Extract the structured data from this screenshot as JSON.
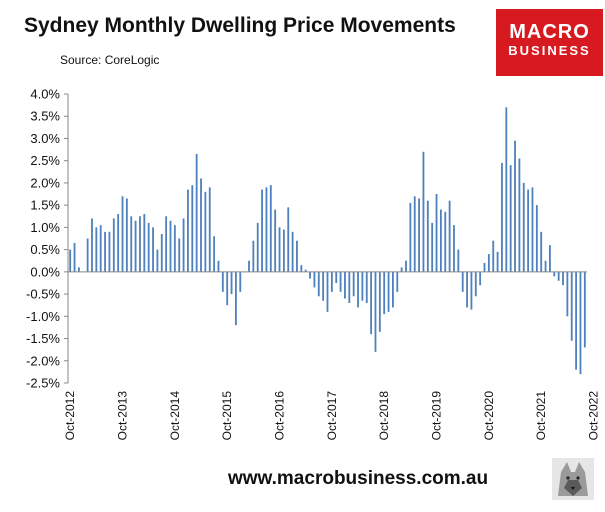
{
  "header": {
    "title": "Sydney Monthly Dwelling Price Movements",
    "source": "Source: CoreLogic",
    "logo_line1": "MACRO",
    "logo_line2": "BUSINESS"
  },
  "footer": {
    "url": "www.macrobusiness.com.au"
  },
  "colors": {
    "bar": "#4f81bd",
    "logo_bg": "#d71920"
  },
  "chart_data": {
    "type": "bar",
    "xlabel": "",
    "ylabel": "",
    "ylim": [
      -2.5,
      4.0
    ],
    "ytick_step": 0.5,
    "yticks": [
      "4.0%",
      "3.5%",
      "3.0%",
      "2.5%",
      "2.0%",
      "1.5%",
      "1.0%",
      "0.5%",
      "0.0%",
      "-0.5%",
      "-1.0%",
      "-1.5%",
      "-2.0%",
      "-2.5%"
    ],
    "xtick_labels": [
      "Oct-2012",
      "Oct-2013",
      "Oct-2014",
      "Oct-2015",
      "Oct-2016",
      "Oct-2017",
      "Oct-2018",
      "Oct-2019",
      "Oct-2020",
      "Oct-2021",
      "Oct-2022"
    ],
    "start_month": "Oct-2012",
    "grid": false,
    "legend": "none",
    "values": [
      0.5,
      0.65,
      0.1,
      0.0,
      0.75,
      1.2,
      1.0,
      1.05,
      0.9,
      0.9,
      1.2,
      1.3,
      1.7,
      1.65,
      1.25,
      1.15,
      1.25,
      1.3,
      1.1,
      1.0,
      0.5,
      0.85,
      1.25,
      1.15,
      1.05,
      0.75,
      1.2,
      1.85,
      1.95,
      2.65,
      2.1,
      1.8,
      1.9,
      0.8,
      0.25,
      -0.45,
      -0.75,
      -0.5,
      -1.2,
      -0.45,
      0.0,
      0.25,
      0.7,
      1.1,
      1.85,
      1.9,
      1.95,
      1.4,
      1.0,
      0.95,
      1.45,
      0.9,
      0.7,
      0.15,
      0.05,
      -0.15,
      -0.35,
      -0.55,
      -0.65,
      -0.9,
      -0.45,
      -0.25,
      -0.45,
      -0.6,
      -0.7,
      -0.55,
      -0.8,
      -0.65,
      -0.7,
      -1.4,
      -1.8,
      -1.35,
      -0.95,
      -0.9,
      -0.8,
      -0.45,
      0.1,
      0.25,
      1.55,
      1.7,
      1.65,
      2.7,
      1.6,
      1.1,
      1.75,
      1.4,
      1.35,
      1.6,
      1.05,
      0.5,
      -0.45,
      -0.8,
      -0.85,
      -0.55,
      -0.3,
      0.2,
      0.4,
      0.7,
      0.45,
      2.45,
      3.7,
      2.4,
      2.95,
      2.55,
      2.0,
      1.85,
      1.9,
      1.5,
      0.9,
      0.25,
      0.6,
      -0.1,
      -0.2,
      -0.3,
      -1.0,
      -1.55,
      -2.2,
      -2.3,
      -1.7
    ]
  }
}
